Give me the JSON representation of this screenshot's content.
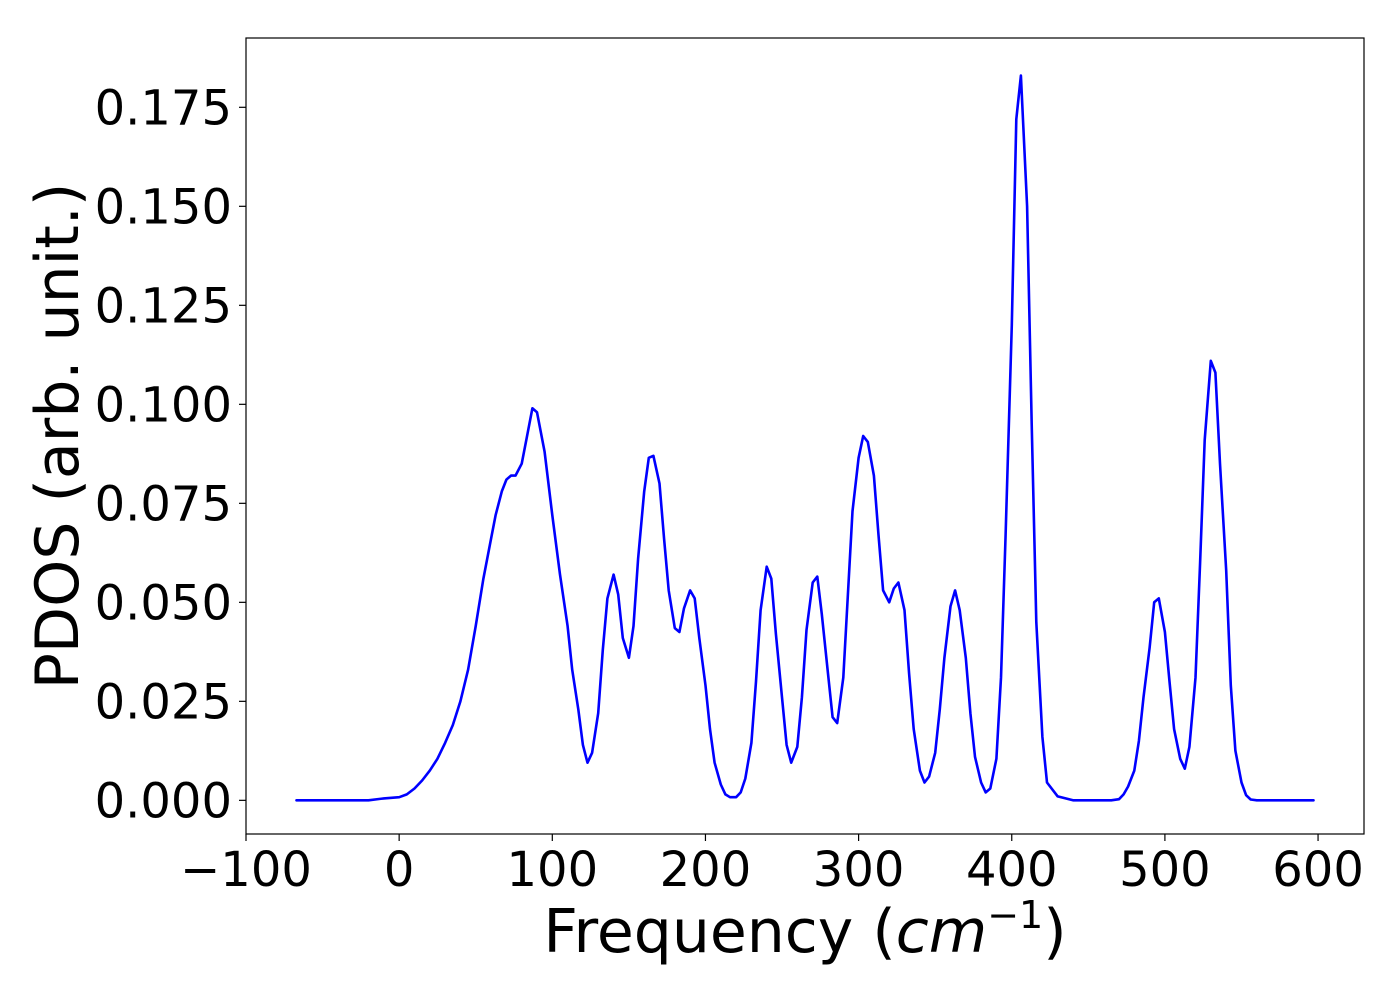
{
  "chart_data": {
    "type": "line",
    "title": "",
    "xlabel_text": "Frequency (",
    "xlabel_math_base": "cm",
    "xlabel_math_sup": "−1",
    "xlabel_close": ")",
    "ylabel": "PDOS (arb. unit.)",
    "xlim": [
      -100,
      630
    ],
    "ylim": [
      -0.0085,
      0.1925
    ],
    "x_ticks": [
      -100,
      0,
      100,
      200,
      300,
      400,
      500,
      600
    ],
    "x_tick_labels": [
      "−100",
      "0",
      "100",
      "200",
      "300",
      "400",
      "500",
      "600"
    ],
    "y_ticks": [
      0,
      0.025,
      0.05,
      0.075,
      0.1,
      0.125,
      0.15,
      0.175
    ],
    "y_tick_labels": [
      "0.000",
      "0.025",
      "0.050",
      "0.075",
      "0.100",
      "0.125",
      "0.150",
      "0.175"
    ],
    "grid": false,
    "legend": "none",
    "series": [
      {
        "color": "#0000ff",
        "x": [
          -67,
          -50,
          -30,
          -20,
          -10,
          0,
          5,
          10,
          15,
          20,
          25,
          30,
          35,
          40,
          45,
          50,
          55,
          60,
          63,
          67,
          70,
          73,
          76,
          80,
          83,
          87,
          90,
          95,
          100,
          105,
          110,
          113,
          117,
          120,
          123,
          126,
          130,
          133,
          136,
          140,
          143,
          146,
          150,
          153,
          156,
          160,
          163,
          166,
          170,
          173,
          176,
          180,
          183,
          186,
          190,
          193,
          196,
          200,
          203,
          206,
          210,
          213,
          216,
          220,
          223,
          226,
          230,
          233,
          236,
          240,
          243,
          246,
          250,
          253,
          256,
          260,
          263,
          266,
          270,
          273,
          276,
          280,
          283,
          286,
          290,
          293,
          296,
          300,
          303,
          306,
          310,
          313,
          316,
          320,
          323,
          326,
          330,
          333,
          336,
          340,
          343,
          346,
          350,
          353,
          356,
          360,
          363,
          366,
          370,
          373,
          376,
          380,
          383,
          386,
          390,
          393,
          396,
          400,
          403,
          406,
          410,
          413,
          416,
          420,
          423,
          430,
          440,
          450,
          460,
          465,
          470,
          473,
          476,
          480,
          483,
          486,
          490,
          493,
          496,
          500,
          503,
          506,
          510,
          513,
          516,
          520,
          523,
          526,
          530,
          533,
          536,
          540,
          543,
          546,
          550,
          553,
          556,
          560,
          570,
          580,
          597
        ],
        "y": [
          0,
          0,
          0,
          0,
          0.0005,
          0.0008,
          0.0015,
          0.003,
          0.005,
          0.0075,
          0.0105,
          0.0145,
          0.019,
          0.025,
          0.033,
          0.044,
          0.056,
          0.066,
          0.072,
          0.078,
          0.081,
          0.082,
          0.082,
          0.085,
          0.091,
          0.099,
          0.098,
          0.088,
          0.072,
          0.057,
          0.044,
          0.033,
          0.023,
          0.014,
          0.0095,
          0.012,
          0.022,
          0.038,
          0.051,
          0.057,
          0.052,
          0.041,
          0.036,
          0.044,
          0.061,
          0.078,
          0.0865,
          0.087,
          0.08,
          0.066,
          0.053,
          0.0435,
          0.0425,
          0.0485,
          0.053,
          0.051,
          0.041,
          0.029,
          0.018,
          0.0095,
          0.004,
          0.0015,
          0.0008,
          0.0008,
          0.002,
          0.0055,
          0.0145,
          0.03,
          0.048,
          0.059,
          0.056,
          0.042,
          0.026,
          0.014,
          0.0095,
          0.0135,
          0.026,
          0.043,
          0.055,
          0.0565,
          0.047,
          0.032,
          0.021,
          0.0195,
          0.031,
          0.052,
          0.073,
          0.0865,
          0.092,
          0.0905,
          0.082,
          0.067,
          0.053,
          0.05,
          0.0535,
          0.055,
          0.048,
          0.032,
          0.018,
          0.0075,
          0.0045,
          0.006,
          0.012,
          0.023,
          0.036,
          0.049,
          0.053,
          0.048,
          0.036,
          0.022,
          0.011,
          0.0045,
          0.002,
          0.003,
          0.0105,
          0.031,
          0.067,
          0.12,
          0.172,
          0.183,
          0.15,
          0.095,
          0.045,
          0.016,
          0.0045,
          0.001,
          0,
          0,
          0,
          0,
          0.0003,
          0.0015,
          0.0035,
          0.0075,
          0.015,
          0.026,
          0.0385,
          0.05,
          0.051,
          0.0425,
          0.03,
          0.018,
          0.0105,
          0.008,
          0.0135,
          0.031,
          0.06,
          0.091,
          0.111,
          0.108,
          0.085,
          0.058,
          0.029,
          0.0125,
          0.0045,
          0.0013,
          0.0002,
          0,
          0,
          0,
          0
        ]
      }
    ]
  }
}
